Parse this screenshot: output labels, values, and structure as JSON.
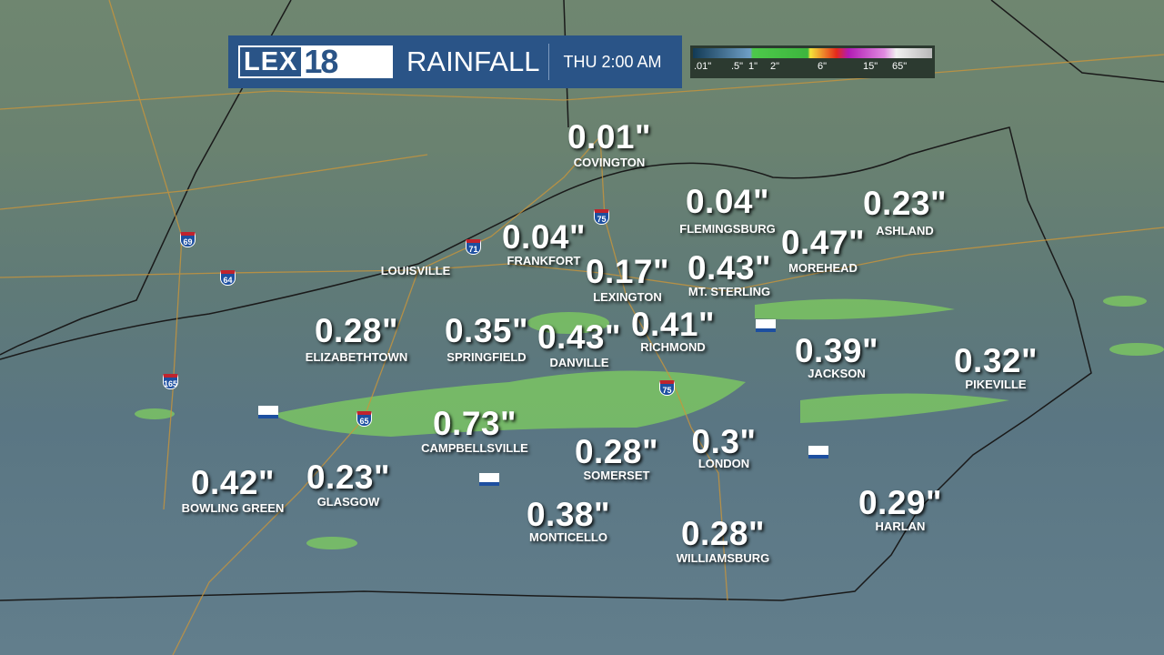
{
  "header": {
    "logo_text": "LEX",
    "logo_number": "18",
    "title": "RAINFALL",
    "time": "THU 2:00 AM"
  },
  "legend": {
    "ticks": [
      ".01\"",
      ".5\"",
      "1\"",
      "2\"",
      "6\"",
      "15\"",
      "65\""
    ]
  },
  "cities": [
    {
      "name": "COVINGTON",
      "value": "0.01\""
    },
    {
      "name": "FLEMINGSBURG",
      "value": "0.04\""
    },
    {
      "name": "ASHLAND",
      "value": "0.23\""
    },
    {
      "name": "FRANKFORT",
      "value": "0.04\""
    },
    {
      "name": "LOUISVILLE",
      "value": ""
    },
    {
      "name": "MOREHEAD",
      "value": "0.47\""
    },
    {
      "name": "LEXINGTON",
      "value": "0.17\""
    },
    {
      "name": "MT. STERLING",
      "value": "0.43\""
    },
    {
      "name": "ELIZABETHTOWN",
      "value": "0.28\""
    },
    {
      "name": "SPRINGFIELD",
      "value": "0.35\""
    },
    {
      "name": "DANVILLE",
      "value": "0.43\""
    },
    {
      "name": "RICHMOND",
      "value": "0.41\""
    },
    {
      "name": "JACKSON",
      "value": "0.39\""
    },
    {
      "name": "PIKEVILLE",
      "value": "0.32\""
    },
    {
      "name": "CAMPBELLSVILLE",
      "value": "0.73\""
    },
    {
      "name": "SOMERSET",
      "value": "0.28\""
    },
    {
      "name": "LONDON",
      "value": "0.3\""
    },
    {
      "name": "BOWLING GREEN",
      "value": "0.42\""
    },
    {
      "name": "GLASGOW",
      "value": "0.23\""
    },
    {
      "name": "MONTICELLO",
      "value": "0.38\""
    },
    {
      "name": "WILLIAMSBURG",
      "value": "0.28\""
    },
    {
      "name": "HARLAN",
      "value": "0.29\""
    }
  ],
  "interstates": [
    "69",
    "64",
    "71",
    "75",
    "165",
    "65",
    "75"
  ],
  "colors": {
    "header_bg": "#2a5487",
    "rain_light": "#6fc85a",
    "map_land": "#6a8270"
  }
}
